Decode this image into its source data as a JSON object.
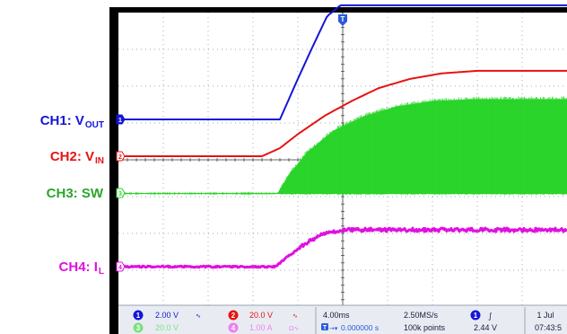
{
  "chart_data": {
    "type": "line",
    "time_div": "4.00ms",
    "sample_rate": "2.50MS/s",
    "record_length": "100k points",
    "trigger_delay": "0.000000 s",
    "trigger_level": "2.44 V",
    "date": "1 Jul",
    "time": "07:43:5",
    "x_divisions": 10,
    "y_divisions": 8,
    "trigger_marker": "T",
    "series": [
      {
        "id": "ch1",
        "name": "CH1: V",
        "subscript": "OUT",
        "color": "#1515d8",
        "scale": "2.00 V",
        "marker": "1",
        "baseline": 0,
        "x": [
          0,
          3.6,
          4.0,
          4.3,
          4.65,
          4.95,
          5.3,
          8.0
        ],
        "y": [
          0,
          0,
          1.1,
          1.9,
          2.8,
          3.1,
          3.1,
          3.1
        ]
      },
      {
        "id": "ch2",
        "name": "CH2: V",
        "subscript": "IN",
        "color": "#e81212",
        "scale": "20.0 V",
        "marker": "2",
        "baseline": 0,
        "x": [
          0,
          3.2,
          3.6,
          4.0,
          4.6,
          5.2,
          5.8,
          6.5,
          7.2,
          8.0
        ],
        "y": [
          0,
          0,
          0.22,
          0.6,
          1.1,
          1.5,
          1.85,
          2.1,
          2.25,
          2.32
        ]
      },
      {
        "id": "ch3",
        "name": "CH3: SW",
        "subscript": "",
        "color": "#2ad42a",
        "scale": "20.0 V",
        "marker": "3",
        "baseline": 0,
        "x": [
          0,
          3.55,
          3.8,
          4.2,
          4.8,
          5.5,
          6.2,
          7.0,
          8.0
        ],
        "y": [
          0,
          0,
          0.5,
          1.1,
          1.7,
          2.1,
          2.35,
          2.5,
          2.55
        ]
      },
      {
        "id": "ch4",
        "name": "CH4: I",
        "subscript": "L",
        "color": "#e010e0",
        "scale": "1.00 A",
        "marker": "4",
        "baseline": 0,
        "x": [
          0,
          3.5,
          3.8,
          4.2,
          4.6,
          5.0,
          8.0
        ],
        "y": [
          0,
          0,
          0.3,
          0.65,
          0.9,
          1.0,
          1.0
        ]
      }
    ]
  }
}
